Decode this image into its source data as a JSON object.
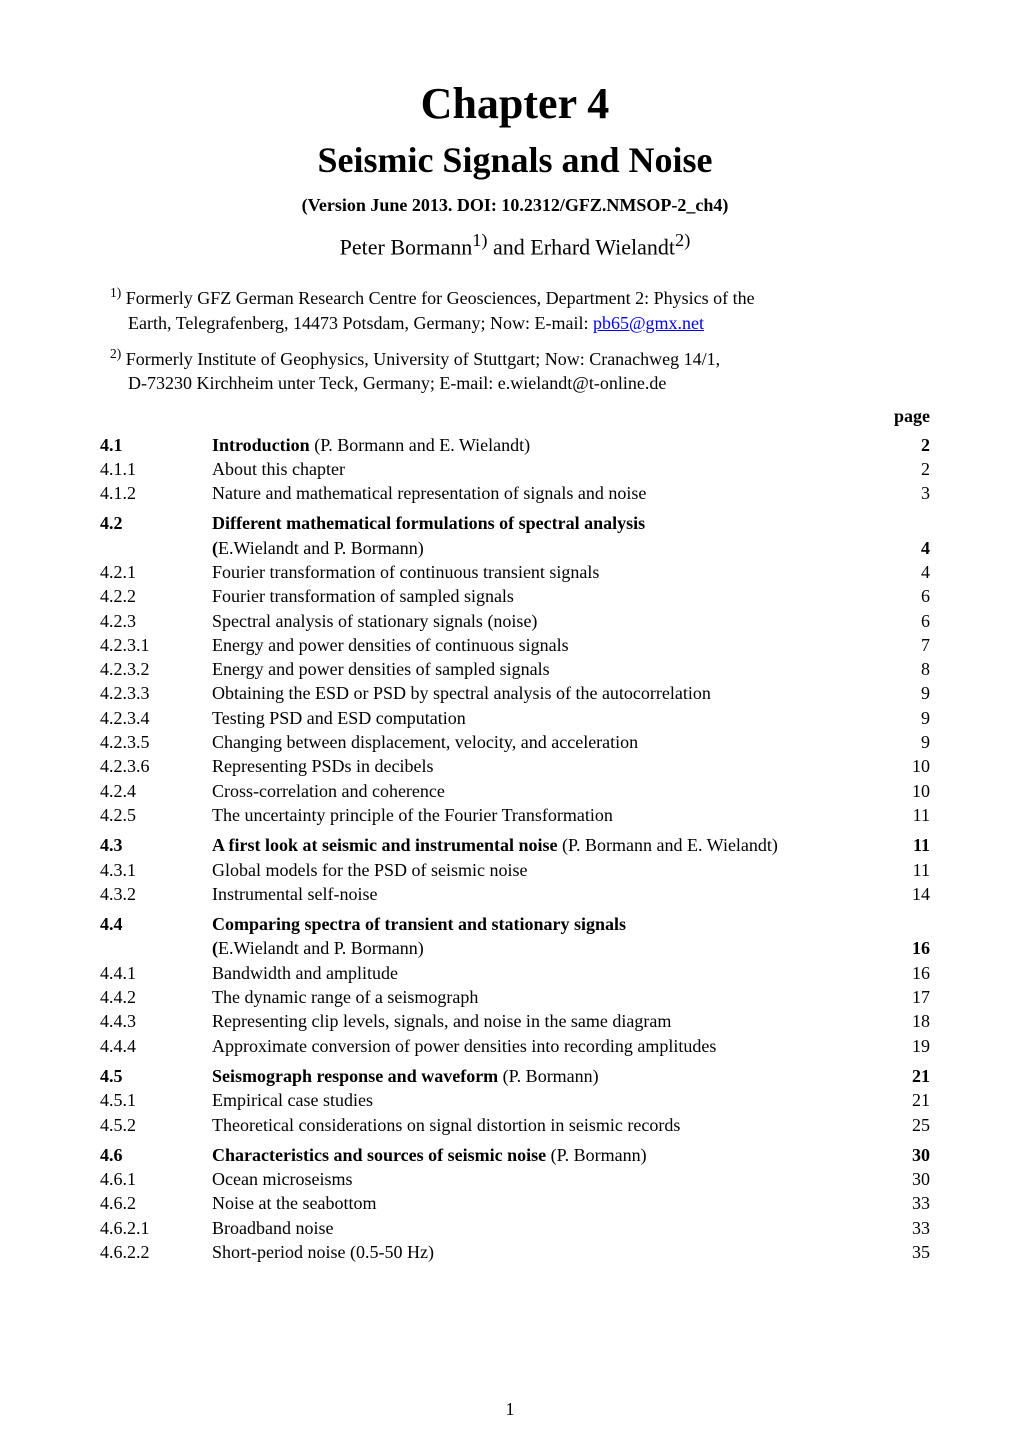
{
  "chapter_title": "Chapter 4",
  "chapter_subtitle": "Seismic Signals and Noise",
  "version_line": "(Version June 2013. DOI: 10.2312/GFZ.NMSOP-2_ch4)",
  "authors_prefix": "Peter Bormann",
  "authors_sup1": "1)",
  "authors_mid": " and Erhard Wielandt",
  "authors_sup2": "2)",
  "affil1_sup": "1)",
  "affil1_a": " Formerly GFZ German Research Centre for Geosciences, Department 2: Physics of the",
  "affil1_b": "Earth, Telegrafenberg, 14473 Potsdam, Germany; Now: E-mail: ",
  "affil1_mail": "pb65@gmx.net",
  "affil2_sup": "2)",
  "affil2_a": " Formerly Institute of Geophysics, University of Stuttgart; Now: Cranachweg 14/1,",
  "affil2_b": "D-73230 Kirchheim unter Teck, Germany; E-mail: e.wielandt@t-online.de",
  "page_label": "page",
  "page_number": "1",
  "toc": [
    {
      "n": "4.1",
      "lvl": 1,
      "t1": "Introduction",
      "t2": " (P. Bormann and E. Wielandt)",
      "pg": "2",
      "bold_pg": true
    },
    {
      "n": "4.1.1",
      "lvl": 2,
      "t1": "About this chapter",
      "pg": "2"
    },
    {
      "n": "4.1.2",
      "lvl": 2,
      "t1": "Nature and mathematical representation of signals and noise",
      "pg": "3"
    },
    {
      "gap": true
    },
    {
      "n": "4.2",
      "lvl": 1,
      "t1": "Different mathematical formulations of spectral analysis",
      "line2_pre": "(",
      "line2": "E.Wielandt and P. Bormann)",
      "pg": "4",
      "bold_pg": true
    },
    {
      "n": "4.2.1",
      "lvl": 2,
      "t1": "Fourier transformation of continuous transient signals",
      "pg": "4"
    },
    {
      "n": "4.2.2",
      "lvl": 2,
      "t1": "Fourier transformation of sampled signals",
      "pg": "6"
    },
    {
      "n": "4.2.3",
      "lvl": 2,
      "t1": "Spectral analysis of stationary signals (noise)",
      "pg": "6"
    },
    {
      "n": "4.2.3.1",
      "lvl": 3,
      "t1": "Energy and power densities of continuous signals",
      "pg": "7"
    },
    {
      "n": "4.2.3.2",
      "lvl": 3,
      "t1": "Energy and power densities of sampled signals",
      "pg": "8"
    },
    {
      "n": "4.2.3.3",
      "lvl": 3,
      "t1": "Obtaining the ESD or PSD by spectral analysis of the autocorrelation",
      "pg": "9"
    },
    {
      "n": "4.2.3.4",
      "lvl": 3,
      "t1": "Testing PSD and ESD computation",
      "pg": "9"
    },
    {
      "n": "4.2.3.5",
      "lvl": 3,
      "t1": "Changing between displacement, velocity, and acceleration",
      "pg": "9"
    },
    {
      "n": "4.2.3.6",
      "lvl": 3,
      "t1": "Representing PSDs in decibels",
      "pg": "10"
    },
    {
      "n": "4.2.4",
      "lvl": 2,
      "t1": "Cross-correlation and coherence",
      "pg": "10"
    },
    {
      "n": "4.2.5",
      "lvl": 2,
      "t1": "The uncertainty principle of the Fourier Transformation",
      "pg": "11"
    },
    {
      "gap": true
    },
    {
      "n": "4.3",
      "lvl": 1,
      "t1": "A first look at seismic and instrumental noise",
      "t2": " (P. Bormann and E. Wielandt)",
      "pg": "11",
      "bold_pg": true
    },
    {
      "n": "4.3.1",
      "lvl": 2,
      "t1": "Global models for the PSD of seismic noise",
      "pg": "11"
    },
    {
      "n": "4.3.2",
      "lvl": 2,
      "t1": "Instrumental self-noise",
      "pg": "14"
    },
    {
      "gap": true
    },
    {
      "n": "4.4",
      "lvl": 1,
      "t1": "Comparing spectra of transient and stationary signals",
      "line2_pre": "(",
      "line2": "E.Wielandt and P. Bormann)",
      "pg": "16",
      "bold_pg": true
    },
    {
      "n": "4.4.1",
      "lvl": 2,
      "t1": "Bandwidth and amplitude",
      "pg": "16"
    },
    {
      "n": "4.4.2",
      "lvl": 2,
      "t1": "The dynamic range of a seismograph",
      "pg": "17"
    },
    {
      "n": "4.4.3",
      "lvl": 2,
      "t1": "Representing clip levels, signals, and noise in the same diagram",
      "pg": "18"
    },
    {
      "n": "4.4.4",
      "lvl": 2,
      "t1": "Approximate conversion of power densities into recording amplitudes",
      "pg": "19"
    },
    {
      "gap": true
    },
    {
      "n": "4.5",
      "lvl": 1,
      "t1": "Seismograph response and waveform",
      "t2": " (P. Bormann)",
      "pg": "21",
      "bold_pg": true
    },
    {
      "n": "4.5.1",
      "lvl": 2,
      "t1": "Empirical case studies",
      "pg": "21"
    },
    {
      "n": "4.5.2",
      "lvl": 2,
      "t1": "Theoretical considerations on signal distortion in seismic records",
      "pg": "25"
    },
    {
      "gap": true
    },
    {
      "n": "4.6",
      "lvl": 1,
      "t1": "Characteristics and sources of seismic noise",
      "t2": " (P. Bormann)",
      "pg": "30",
      "bold_pg": true
    },
    {
      "n": "4.6.1",
      "lvl": 2,
      "t1": "Ocean microseisms",
      "pg": "30"
    },
    {
      "n": "4.6.2",
      "lvl": 2,
      "t1": "Noise at the seabottom",
      "pg": "33"
    },
    {
      "n": "4.6.2.1",
      "lvl": 3,
      "t1": "Broadband noise",
      "pg": "33"
    },
    {
      "n": "4.6.2.2",
      "lvl": 3,
      "t1": "Short-period noise (0.5-50 Hz)",
      "pg": "35"
    }
  ]
}
